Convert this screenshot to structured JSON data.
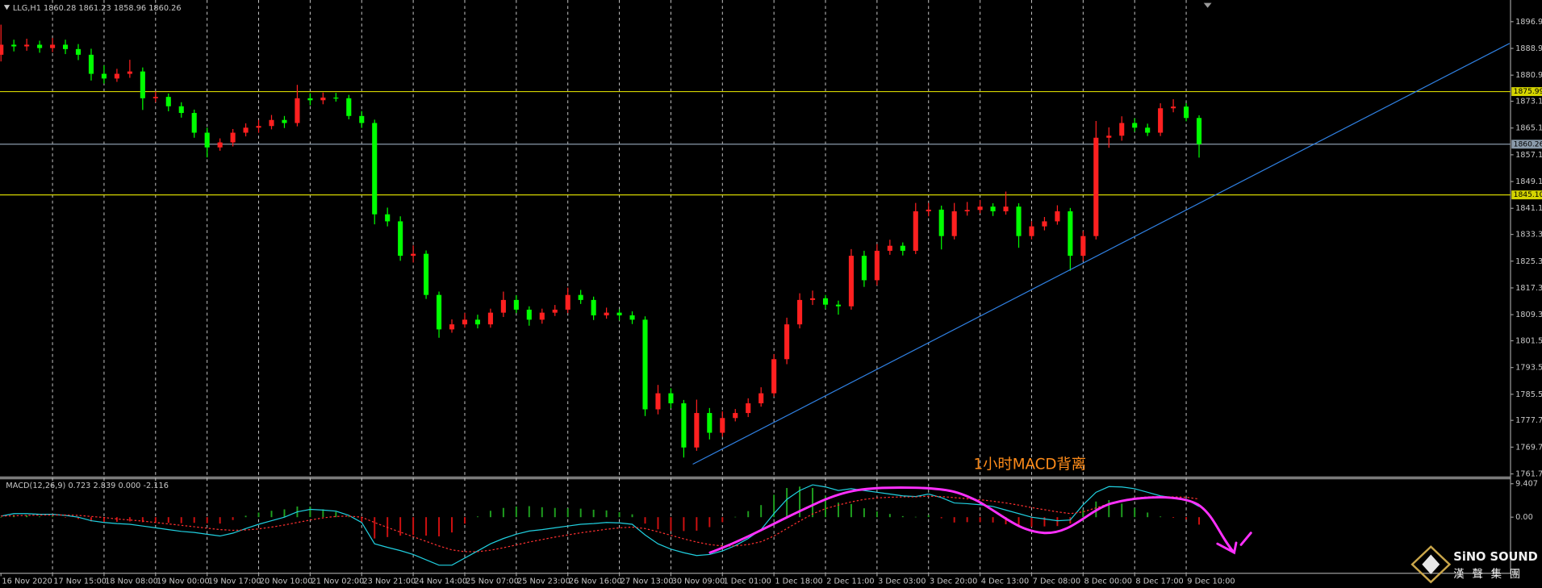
{
  "chart_data": [
    {
      "type": "candlestick",
      "title": "LLG,H1  1860.28 1861.23 1858.96 1860.26",
      "categories": [
        "16 Nov 2020",
        null,
        null,
        null,
        "17 Nov 15:00",
        null,
        null,
        null,
        "18 Nov 08:00",
        null,
        null,
        null,
        "19 Nov 00:00",
        null,
        null,
        null,
        "19 Nov 17:00",
        null,
        null,
        null,
        "20 Nov 10:00",
        null,
        null,
        null,
        "21 Nov 02:00",
        null,
        null,
        null,
        "23 Nov 21:00",
        null,
        null,
        null,
        "24 Nov 14:00",
        null,
        null,
        null,
        "25 Nov 07:00",
        null,
        null,
        null,
        "25 Nov 23:00",
        null,
        null,
        null,
        "26 Nov 16:00",
        null,
        null,
        null,
        "27 Nov 13:00",
        null,
        null,
        null,
        "30 Nov 09:00",
        null,
        null,
        null,
        "1 Dec 01:00",
        null,
        null,
        null,
        "1 Dec 18:00",
        null,
        null,
        null,
        "2 Dec 11:00",
        null,
        null,
        null,
        "3 Dec 03:00",
        null,
        null,
        null,
        "3 Dec 20:00",
        null,
        null,
        null,
        "4 Dec 13:00",
        null,
        null,
        null,
        "7 Dec 08:00",
        null,
        null,
        null,
        "8 Dec 00:00",
        null,
        null,
        null,
        "8 Dec 17:00",
        null,
        null,
        null,
        "9 Dec 10:00",
        null
      ],
      "open": [
        1887.0,
        1890.0,
        1889.5,
        1890.0,
        1889.0,
        1890.0,
        1888.7,
        1887.0,
        1881.3,
        1879.9,
        1881.3,
        1882.0,
        1874.0,
        1874.4,
        1871.6,
        1869.6,
        1863.7,
        1859.3,
        1860.8,
        1863.7,
        1865.2,
        1865.7,
        1867.5,
        1866.6,
        1874.0,
        1873.4,
        1874.2,
        1874.0,
        1868.7,
        1866.6,
        1839.3,
        1837.2,
        1826.9,
        1827.5,
        1815.2,
        1804.9,
        1806.4,
        1807.8,
        1806.4,
        1809.9,
        1813.7,
        1810.8,
        1807.8,
        1809.9,
        1810.8,
        1815.2,
        1813.7,
        1809.1,
        1809.9,
        1809.1,
        1807.8,
        1781.0,
        1785.8,
        1782.8,
        1769.6,
        1779.9,
        1774.0,
        1778.4,
        1779.9,
        1782.8,
        1785.8,
        1796.0,
        1806.4,
        1813.7,
        1814.2,
        1812.3,
        1811.8,
        1826.9,
        1819.6,
        1828.4,
        1829.9,
        1828.4,
        1840.2,
        1840.7,
        1832.8,
        1840.2,
        1840.6,
        1841.6,
        1840.2,
        1841.6,
        1832.8,
        1835.7,
        1837.2,
        1840.2,
        1826.9,
        1832.8,
        1862.2,
        1862.8,
        1866.6,
        1865.2,
        1863.7,
        1871.0,
        1871.5,
        1868.1
      ],
      "high": [
        1896.0,
        1891.5,
        1891.8,
        1891.2,
        1892.0,
        1891.5,
        1890.2,
        1888.8,
        1883.8,
        1882.8,
        1885.5,
        1883.2,
        1876.0,
        1875.4,
        1872.8,
        1870.6,
        1865.2,
        1862.0,
        1864.8,
        1866.5,
        1867.5,
        1869.0,
        1868.7,
        1878.0,
        1875.5,
        1875.7,
        1875.6,
        1875.0,
        1870.2,
        1867.6,
        1841.3,
        1838.7,
        1830.0,
        1828.5,
        1816.2,
        1807.9,
        1809.8,
        1809.3,
        1811.1,
        1816.2,
        1815.1,
        1811.8,
        1811.1,
        1812.2,
        1817.4,
        1816.7,
        1814.7,
        1811.4,
        1810.9,
        1810.3,
        1808.8,
        1788.3,
        1787.3,
        1783.8,
        1783.9,
        1781.4,
        1780.4,
        1781.1,
        1784.3,
        1787.6,
        1797.5,
        1808.4,
        1815.7,
        1816.5,
        1815.2,
        1813.5,
        1828.9,
        1828.4,
        1830.4,
        1831.7,
        1830.9,
        1842.7,
        1842.7,
        1841.9,
        1842.7,
        1843.0,
        1843.6,
        1842.6,
        1846.1,
        1842.6,
        1837.2,
        1838.5,
        1842.0,
        1841.2,
        1834.3,
        1867.2,
        1865.3,
        1868.6,
        1868.0,
        1866.4,
        1872.5,
        1873.7,
        1872.5,
        1868.9
      ],
      "low": [
        1885.0,
        1888.0,
        1888.2,
        1887.6,
        1887.8,
        1887.2,
        1885.4,
        1879.3,
        1878.4,
        1878.9,
        1880.1,
        1870.5,
        1872.8,
        1870.1,
        1868.2,
        1862.2,
        1856.3,
        1858.3,
        1859.6,
        1862.6,
        1863.7,
        1864.7,
        1865.1,
        1865.6,
        1871.9,
        1872.2,
        1873.0,
        1867.7,
        1865.1,
        1836.3,
        1835.7,
        1825.4,
        1824.9,
        1814.0,
        1802.4,
        1803.9,
        1805.4,
        1805.2,
        1805.4,
        1808.6,
        1809.8,
        1806.0,
        1806.6,
        1808.9,
        1809.8,
        1812.5,
        1807.7,
        1808.1,
        1807.6,
        1806.5,
        1779.0,
        1779.5,
        1781.3,
        1766.6,
        1768.6,
        1772.0,
        1772.8,
        1777.4,
        1778.7,
        1781.8,
        1784.8,
        1794.5,
        1805.2,
        1812.2,
        1811.1,
        1809.3,
        1810.8,
        1817.6,
        1818.1,
        1827.2,
        1827.0,
        1827.4,
        1838.7,
        1828.8,
        1831.8,
        1838.9,
        1839.6,
        1838.8,
        1839.2,
        1829.3,
        1831.8,
        1834.5,
        1836.2,
        1822.4,
        1825.4,
        1831.8,
        1859.2,
        1861.3,
        1864.0,
        1862.7,
        1862.7,
        1869.8,
        1867.1,
        1856.26
      ],
      "close": [
        1890.0,
        1889.5,
        1890.0,
        1889.0,
        1890.0,
        1888.7,
        1887.0,
        1881.3,
        1879.9,
        1881.3,
        1882.0,
        1874.0,
        1874.4,
        1871.6,
        1869.6,
        1863.7,
        1859.3,
        1860.8,
        1863.7,
        1865.2,
        1865.7,
        1867.5,
        1866.6,
        1874.0,
        1873.4,
        1874.2,
        1874.0,
        1868.7,
        1866.6,
        1839.3,
        1837.2,
        1826.9,
        1827.5,
        1815.2,
        1804.9,
        1806.4,
        1807.8,
        1806.4,
        1809.9,
        1813.7,
        1810.8,
        1807.8,
        1809.9,
        1810.8,
        1815.2,
        1813.7,
        1809.1,
        1809.9,
        1809.1,
        1807.8,
        1781.0,
        1785.8,
        1782.8,
        1769.6,
        1779.9,
        1774.0,
        1778.4,
        1779.9,
        1782.8,
        1785.8,
        1796.0,
        1806.4,
        1813.7,
        1814.2,
        1812.3,
        1811.8,
        1826.9,
        1819.6,
        1828.4,
        1829.9,
        1828.4,
        1840.2,
        1840.7,
        1832.8,
        1840.2,
        1840.6,
        1841.6,
        1840.2,
        1841.6,
        1832.8,
        1835.7,
        1837.2,
        1840.2,
        1826.9,
        1832.8,
        1862.2,
        1862.8,
        1866.6,
        1865.2,
        1863.7,
        1871.0,
        1871.5,
        1868.1,
        1860.26
      ],
      "up_color": "#ff2020",
      "down_color": "#00ff00",
      "ylim": [
        1761.1,
        1901.9
      ],
      "yticks": [
        {
          "value": 1896.9,
          "label": "1896.90"
        },
        {
          "value": 1888.9,
          "label": "1888.90"
        },
        {
          "value": 1880.9,
          "label": "1880.90"
        },
        {
          "value": 1873.1,
          "label": "1873.10"
        },
        {
          "value": 1865.1,
          "label": "1865.10"
        },
        {
          "value": 1857.1,
          "label": "1857.10"
        },
        {
          "value": 1849.1,
          "label": "1849.10"
        },
        {
          "value": 1841.1,
          "label": "1841.10"
        },
        {
          "value": 1833.3,
          "label": "1833.30"
        },
        {
          "value": 1825.3,
          "label": "1825.30"
        },
        {
          "value": 1817.3,
          "label": "1817.30"
        },
        {
          "value": 1809.3,
          "label": "1809.30"
        },
        {
          "value": 1801.5,
          "label": "1801.50"
        },
        {
          "value": 1793.5,
          "label": "1793.50"
        },
        {
          "value": 1785.5,
          "label": "1785.50"
        },
        {
          "value": 1777.7,
          "label": "1777.70"
        },
        {
          "value": 1769.7,
          "label": "1769.70"
        },
        {
          "value": 1761.7,
          "label": "1761.70"
        }
      ],
      "levels": [
        {
          "value": 1875.99,
          "label": "1875.99",
          "color": "#d4d400"
        },
        {
          "value": 1860.26,
          "label": "1860.26",
          "color": "#8a9aaa"
        },
        {
          "value": 1845.1,
          "label": "1845.10",
          "color": "#d4d400"
        }
      ],
      "trendline": {
        "x": [
          53.7,
          117.1
        ],
        "y": [
          1764.6,
          1890.4
        ],
        "color": "#2f7fe0"
      },
      "annotation": "1小时MACD背离",
      "annotation_color": "#ff8c1a"
    },
    {
      "type": "macd",
      "title": "MACD(12,26,9) 0.723 2.839 0.000 -2.116",
      "ylim": [
        -15.5,
        10.5
      ],
      "yticks": [
        9.407,
        {
          "value": 0,
          "label": "0.00"
        }
      ],
      "histogram": {
        "color": "#1fa01f",
        "negative_color": "#d01010",
        "values": [
          0.0,
          0.6,
          0.5,
          0.2,
          0.2,
          -0.1,
          -0.5,
          -1.2,
          -1.4,
          -1.3,
          -1.2,
          -1.4,
          -1.5,
          -1.6,
          -1.7,
          -1.6,
          -1.7,
          -1.8,
          -0.8,
          0.4,
          1.3,
          1.8,
          2.2,
          3.0,
          3.0,
          2.2,
          1.5,
          0.2,
          -1.5,
          -6.0,
          -5.6,
          -5.2,
          -5.0,
          -5.2,
          -5.4,
          -4.3,
          -1.8,
          0.2,
          1.8,
          2.6,
          3.0,
          3.1,
          2.8,
          2.6,
          2.5,
          2.4,
          2.1,
          1.9,
          1.4,
          0.8,
          -1.8,
          -3.4,
          -3.9,
          -3.9,
          -3.8,
          -2.8,
          -1.4,
          0.1,
          1.7,
          3.4,
          6.3,
          8.2,
          8.6,
          8.2,
          6.1,
          4.1,
          3.7,
          2.5,
          1.6,
          0.9,
          0.3,
          0.1,
          0.6,
          -0.3,
          -1.5,
          -1.4,
          -1.4,
          -1.5,
          -2.0,
          -2.4,
          -2.7,
          -2.6,
          -2.5,
          -1.8,
          2.0,
          4.4,
          4.8,
          3.8,
          2.6,
          1.3,
          0.2,
          -0.2,
          -0.6,
          -2.1
        ]
      },
      "series": [
        {
          "color": "#20d0e0",
          "style": "solid",
          "values": [
            0.3,
            1.0,
            1.0,
            0.8,
            0.8,
            0.5,
            0.0,
            -1.0,
            -1.5,
            -1.8,
            -2.0,
            -2.5,
            -3.0,
            -3.5,
            -4.0,
            -4.3,
            -4.8,
            -5.3,
            -4.5,
            -3.2,
            -2.0,
            -1.0,
            0.0,
            1.5,
            2.2,
            2.0,
            1.7,
            0.5,
            -1.5,
            -7.5,
            -8.5,
            -9.4,
            -10.5,
            -12.0,
            -13.5,
            -13.5,
            -11.5,
            -9.5,
            -7.5,
            -6.0,
            -4.8,
            -3.9,
            -3.5,
            -3.0,
            -2.5,
            -2.0,
            -1.8,
            -1.5,
            -1.6,
            -2.0,
            -5.0,
            -7.5,
            -9.0,
            -10.0,
            -10.8,
            -10.5,
            -9.5,
            -8.0,
            -6.0,
            -3.5,
            1.0,
            5.0,
            7.5,
            9.1,
            8.5,
            7.5,
            8.0,
            7.5,
            7.0,
            6.5,
            6.0,
            5.8,
            6.5,
            5.5,
            4.0,
            3.8,
            3.5,
            3.0,
            2.0,
            1.0,
            0.0,
            -0.5,
            -1.0,
            -0.8,
            3.5,
            7.0,
            8.6,
            8.5,
            8.0,
            7.0,
            6.0,
            5.5,
            5.0,
            3.0
          ]
        },
        {
          "color": "#ff3030",
          "style": "dotted",
          "values": [
            0.3,
            0.4,
            0.5,
            0.6,
            0.6,
            0.6,
            0.5,
            0.2,
            -0.1,
            -0.5,
            -0.8,
            -1.1,
            -1.5,
            -1.9,
            -2.3,
            -2.7,
            -3.1,
            -3.5,
            -3.7,
            -3.6,
            -3.3,
            -2.8,
            -2.2,
            -1.5,
            -0.8,
            -0.2,
            0.2,
            0.3,
            0.0,
            -1.5,
            -2.9,
            -4.2,
            -5.5,
            -6.8,
            -8.1,
            -9.2,
            -9.7,
            -9.7,
            -9.3,
            -8.6,
            -7.8,
            -7.0,
            -6.3,
            -5.6,
            -5.0,
            -4.4,
            -3.9,
            -3.4,
            -3.0,
            -2.8,
            -3.2,
            -4.1,
            -5.1,
            -6.1,
            -7.0,
            -7.7,
            -8.1,
            -8.1,
            -7.7,
            -6.9,
            -5.3,
            -3.2,
            -1.1,
            0.9,
            2.4,
            3.4,
            4.3,
            5.0,
            5.4,
            5.6,
            5.7,
            5.7,
            5.9,
            5.8,
            5.5,
            5.2,
            4.9,
            4.5,
            4.0,
            3.4,
            2.7,
            2.1,
            1.5,
            1.0,
            1.5,
            2.6,
            3.8,
            4.7,
            5.4,
            5.7,
            5.8,
            5.7,
            5.6,
            5.1
          ]
        }
      ]
    }
  ],
  "logo": {
    "title": "SiNO SOUND",
    "subtitle": "漢聲集團"
  }
}
